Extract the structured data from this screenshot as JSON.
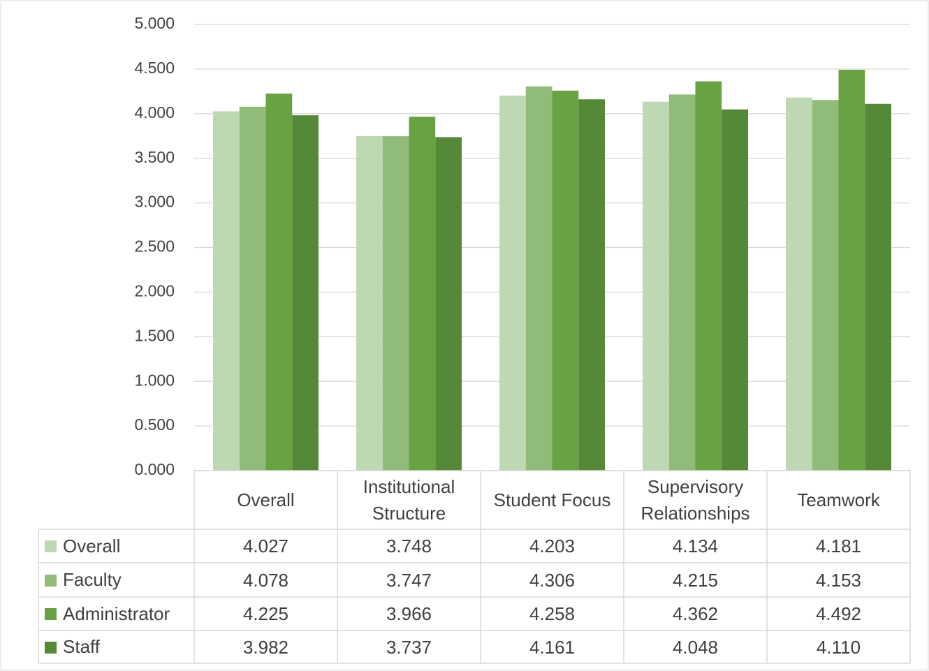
{
  "chart_data": {
    "type": "bar",
    "categories": [
      "Overall",
      "Institutional Structure",
      "Student Focus",
      "Supervisory Relationships",
      "Teamwork"
    ],
    "series": [
      {
        "name": "Overall",
        "color": "#bfd8b4",
        "values": [
          4.027,
          3.748,
          4.203,
          4.134,
          4.181
        ],
        "value_labels": [
          "4.027",
          "3.748",
          "4.203",
          "4.134",
          "4.181"
        ]
      },
      {
        "name": "Faculty",
        "color": "#91bb79",
        "values": [
          4.078,
          3.747,
          4.306,
          4.215,
          4.153
        ],
        "value_labels": [
          "4.078",
          "3.747",
          "4.306",
          "4.215",
          "4.153"
        ]
      },
      {
        "name": "Administrator",
        "color": "#68a242",
        "values": [
          4.225,
          3.966,
          4.258,
          4.362,
          4.492
        ],
        "value_labels": [
          "4.225",
          "3.966",
          "4.258",
          "4.362",
          "4.492"
        ]
      },
      {
        "name": "Staff",
        "color": "#548a37",
        "values": [
          3.982,
          3.737,
          4.161,
          4.048,
          4.11
        ],
        "value_labels": [
          "3.982",
          "3.737",
          "4.161",
          "4.048",
          "4.110"
        ]
      }
    ],
    "ylim": [
      0,
      5
    ],
    "yticks": [
      {
        "value": 0,
        "label": "0.000"
      },
      {
        "value": 0.5,
        "label": "0.500"
      },
      {
        "value": 1,
        "label": "1.000"
      },
      {
        "value": 1.5,
        "label": "1.500"
      },
      {
        "value": 2,
        "label": "2.000"
      },
      {
        "value": 2.5,
        "label": "2.500"
      },
      {
        "value": 3,
        "label": "3.000"
      },
      {
        "value": 3.5,
        "label": "3.500"
      },
      {
        "value": 4,
        "label": "4.000"
      },
      {
        "value": 4.5,
        "label": "4.500"
      },
      {
        "value": 5,
        "label": "5.000"
      }
    ],
    "grid": true,
    "legend": "data-table"
  }
}
